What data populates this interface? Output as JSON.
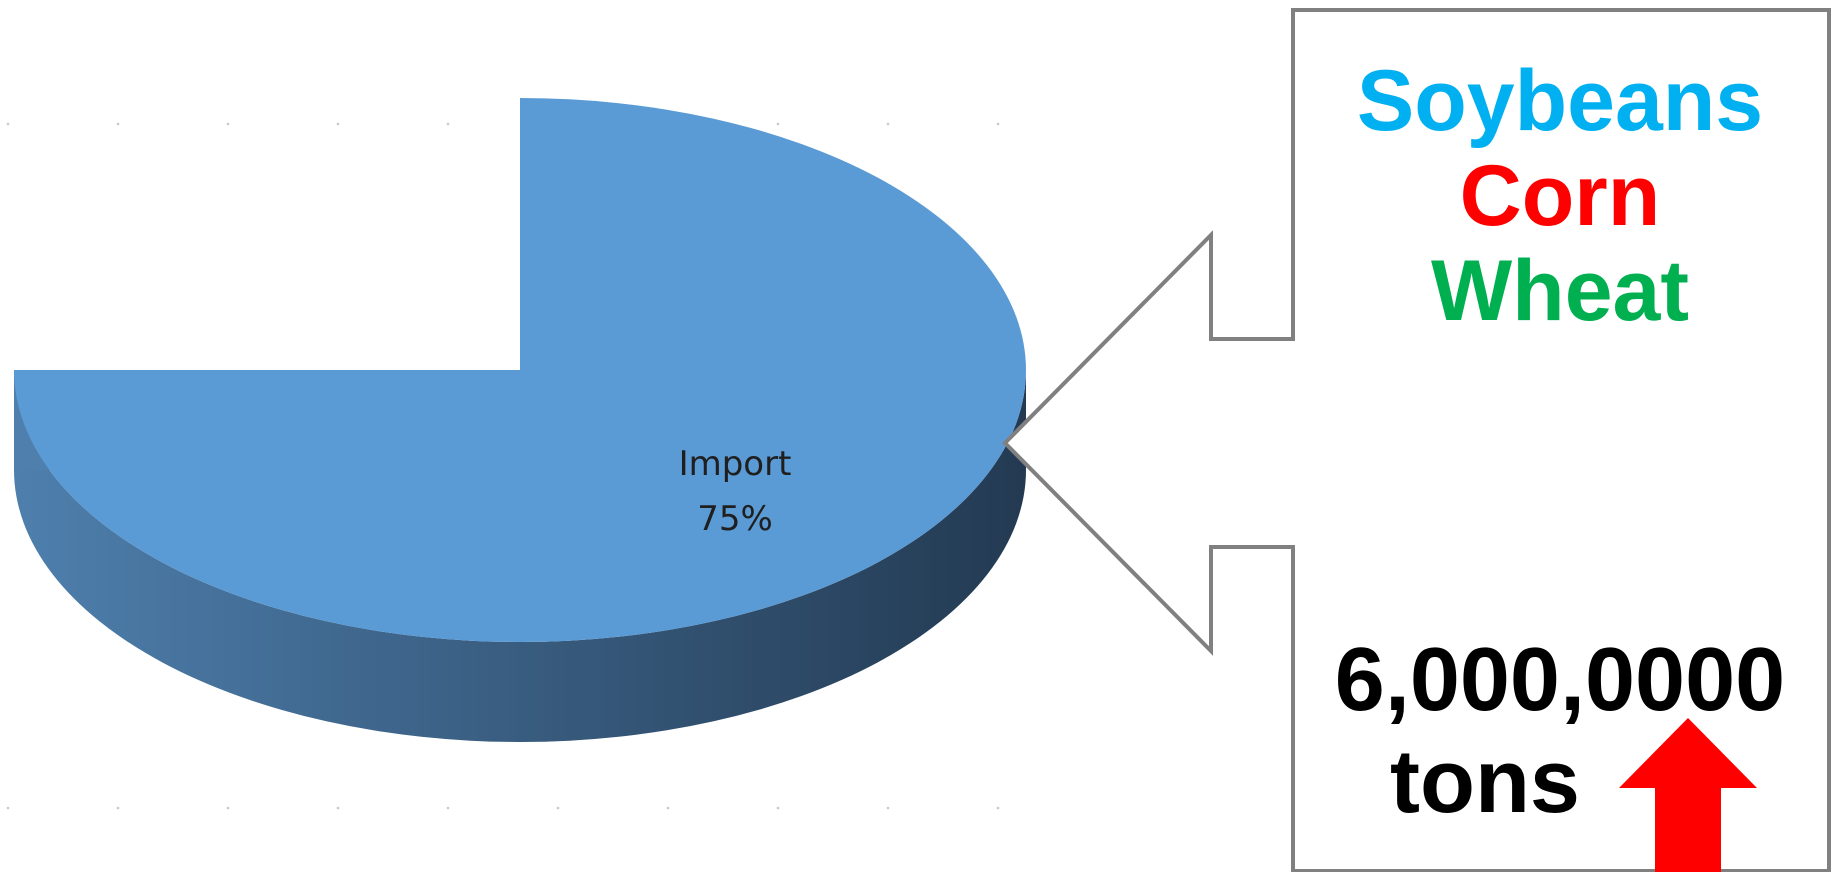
{
  "colors": {
    "slice_top": "#5b9bd5",
    "slice_side_light": "#4e7fad",
    "slice_side_dark": "#233a52",
    "callout_border": "#808080",
    "soybeans": "#00b0f0",
    "corn": "#ff0000",
    "wheat": "#00b050",
    "arrow": "#ff0000"
  },
  "chart_data": {
    "type": "pie",
    "style": "3d",
    "slices": [
      {
        "name": "Import",
        "value": 75,
        "label": "Import",
        "value_label": "75%",
        "color": "#5b9bd5"
      }
    ],
    "title": "",
    "legend": "none"
  },
  "callout": {
    "crops": [
      {
        "label": "Soybeans",
        "color": "#00b0f0"
      },
      {
        "label": "Corn",
        "color": "#ff0000"
      },
      {
        "label": "Wheat",
        "color": "#00b050"
      }
    ],
    "amount": "6,000,0000",
    "units": "tons",
    "trend_icon": "red-up-arrow-icon"
  }
}
